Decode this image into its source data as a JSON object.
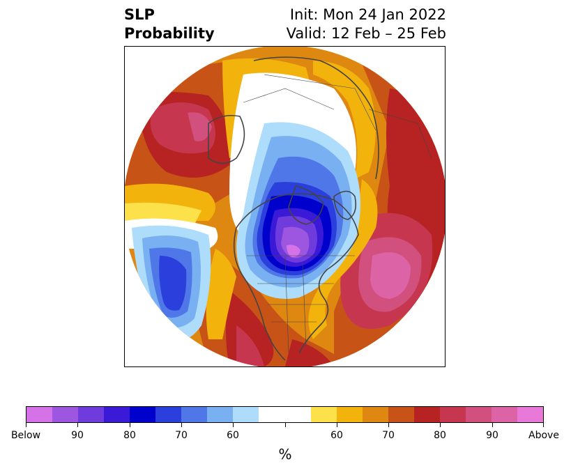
{
  "title": {
    "left_line1": "SLP",
    "left_line2": "Probability",
    "right_line1": "Init: Mon 24 Jan 2022",
    "right_line2": "Valid: 12 Feb – 25 Feb"
  },
  "map": {
    "projection": "north-polar-stereographic",
    "features": [
      "coastlines",
      "country-borders",
      "state-borders",
      "probability-contours"
    ]
  },
  "colorbar": {
    "colors": [
      "#d672e8",
      "#9c56e0",
      "#6f3bdc",
      "#3a1ad6",
      "#0000cc",
      "#2a3fdc",
      "#4f77e8",
      "#78b0f2",
      "#aedcfb",
      "#ffffff",
      "#ffffff",
      "#fde14b",
      "#f1b30c",
      "#de8711",
      "#c85316",
      "#b62322",
      "#c6374f",
      "#d1507d",
      "#db63a6",
      "#e879d8"
    ],
    "tick_labels": [
      "Below",
      "90",
      "80",
      "70",
      "60",
      "",
      "60",
      "70",
      "80",
      "90",
      "Above"
    ],
    "unit": "%"
  },
  "legend_colors": {
    "below_strong": "#9c56e0",
    "below_mid": "#0000cc",
    "below_weak": "#aedcfb",
    "above_weak": "#fde14b",
    "above_mid": "#de8711",
    "above_strong": "#b62322",
    "above_extreme": "#db63a6"
  }
}
